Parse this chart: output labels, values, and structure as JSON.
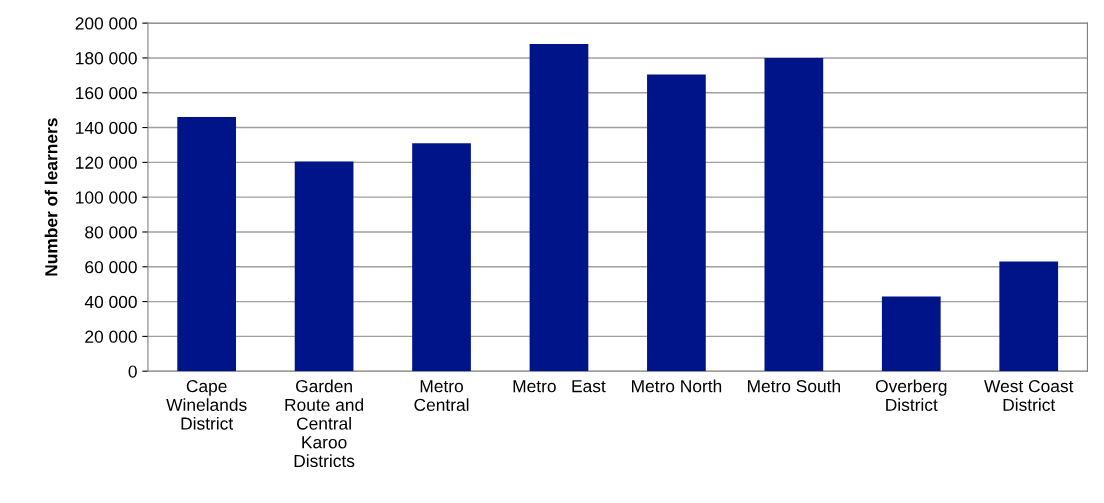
{
  "chart_data": {
    "type": "bar",
    "ylabel": "Number of learners",
    "categories": [
      "Cape\nWinelands\nDistrict",
      "Garden\nRoute and\nCentral\nKaroo\nDistricts",
      "Metro\nCentral",
      "Metro   East",
      "Metro North",
      "Metro South",
      "Overberg\nDistrict",
      "West Coast\nDistrict"
    ],
    "values": [
      146000,
      120500,
      131000,
      188000,
      170500,
      180000,
      43000,
      63000
    ],
    "color": "#001489",
    "ylim": [
      0,
      200000
    ],
    "yticks": [
      {
        "value": 0,
        "label": "0"
      },
      {
        "value": 20000,
        "label": "20 000"
      },
      {
        "value": 40000,
        "label": "40 000"
      },
      {
        "value": 60000,
        "label": "60 000"
      },
      {
        "value": 80000,
        "label": "80 000"
      },
      {
        "value": 100000,
        "label": "100 000"
      },
      {
        "value": 120000,
        "label": "120 000"
      },
      {
        "value": 140000,
        "label": "140 000"
      },
      {
        "value": 160000,
        "label": "160 000"
      },
      {
        "value": 180000,
        "label": "180 000"
      },
      {
        "value": 200000,
        "label": "200 000"
      }
    ],
    "grid": "y",
    "legend": false
  }
}
